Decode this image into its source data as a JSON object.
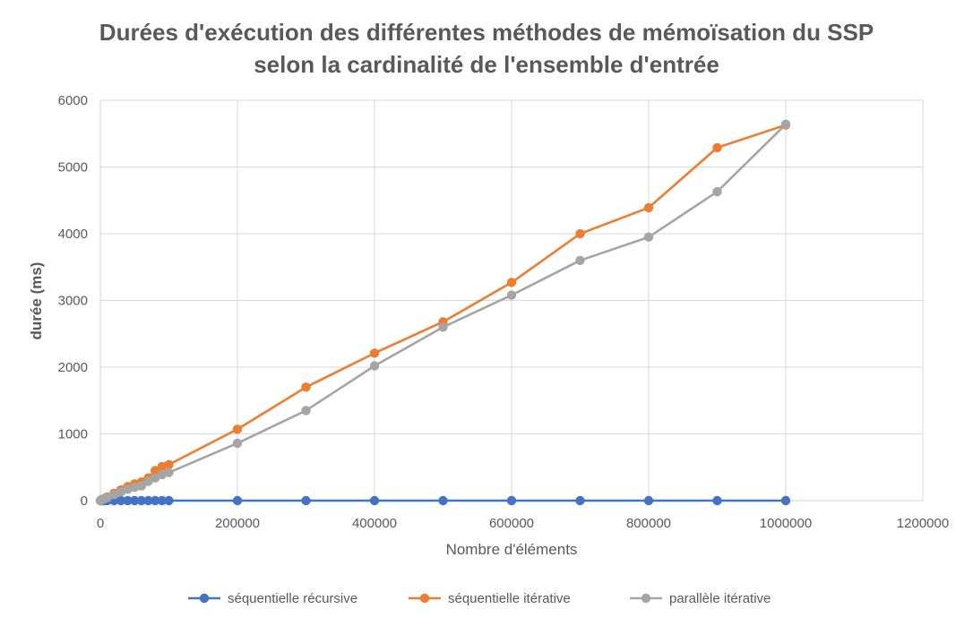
{
  "chart_data": {
    "type": "scatter",
    "title_lines": [
      "Durées d'exécution des différentes méthodes de mémoïsation du SSP",
      "selon la cardinalité de l'ensemble d'entrée"
    ],
    "xlabel": "Nombre d'éléments",
    "ylabel": "durée (ms)",
    "xlim": [
      0,
      1200000
    ],
    "ylim": [
      0,
      6000
    ],
    "x_ticks": [
      0,
      200000,
      400000,
      600000,
      800000,
      1000000,
      1200000
    ],
    "x_tick_labels": [
      "0",
      "200000",
      "400000",
      "600000",
      "800000",
      "1000000",
      "1200000"
    ],
    "y_ticks": [
      0,
      1000,
      2000,
      3000,
      4000,
      5000,
      6000
    ],
    "y_tick_labels": [
      "0",
      "1000",
      "2000",
      "3000",
      "4000",
      "5000",
      "6000"
    ],
    "grid": true,
    "legend_position": "bottom",
    "series": [
      {
        "name": "séquentielle récursive",
        "color": "#4472C4",
        "points": [
          [
            0,
            0
          ],
          [
            1000,
            0
          ],
          [
            2000,
            0
          ],
          [
            5000,
            0
          ],
          [
            10000,
            0
          ],
          [
            20000,
            0
          ],
          [
            30000,
            0
          ],
          [
            40000,
            0
          ],
          [
            50000,
            0
          ],
          [
            60000,
            0
          ],
          [
            70000,
            0
          ],
          [
            80000,
            0
          ],
          [
            90000,
            0
          ],
          [
            100000,
            0
          ],
          [
            200000,
            0
          ],
          [
            300000,
            0
          ],
          [
            400000,
            0
          ],
          [
            500000,
            0
          ],
          [
            600000,
            0
          ],
          [
            700000,
            0
          ],
          [
            800000,
            0
          ],
          [
            900000,
            0
          ],
          [
            1000000,
            0
          ]
        ]
      },
      {
        "name": "séquentielle itérative",
        "color": "#ED7D31",
        "points": [
          [
            0,
            0
          ],
          [
            1000,
            10
          ],
          [
            2000,
            15
          ],
          [
            5000,
            30
          ],
          [
            10000,
            55
          ],
          [
            20000,
            110
          ],
          [
            30000,
            160
          ],
          [
            40000,
            210
          ],
          [
            50000,
            250
          ],
          [
            60000,
            280
          ],
          [
            70000,
            340
          ],
          [
            80000,
            450
          ],
          [
            90000,
            510
          ],
          [
            100000,
            540
          ],
          [
            200000,
            1070
          ],
          [
            300000,
            1700
          ],
          [
            400000,
            2210
          ],
          [
            500000,
            2680
          ],
          [
            600000,
            3270
          ],
          [
            700000,
            4000
          ],
          [
            800000,
            4390
          ],
          [
            900000,
            5290
          ],
          [
            1000000,
            5630
          ]
        ]
      },
      {
        "name": "parallèle itérative",
        "color": "#A5A5A5",
        "points": [
          [
            0,
            0
          ],
          [
            1000,
            8
          ],
          [
            2000,
            12
          ],
          [
            5000,
            25
          ],
          [
            10000,
            45
          ],
          [
            20000,
            90
          ],
          [
            30000,
            130
          ],
          [
            40000,
            170
          ],
          [
            50000,
            200
          ],
          [
            60000,
            220
          ],
          [
            70000,
            290
          ],
          [
            80000,
            340
          ],
          [
            90000,
            390
          ],
          [
            100000,
            420
          ],
          [
            200000,
            860
          ],
          [
            300000,
            1350
          ],
          [
            400000,
            2020
          ],
          [
            500000,
            2600
          ],
          [
            600000,
            3080
          ],
          [
            700000,
            3600
          ],
          [
            800000,
            3950
          ],
          [
            900000,
            4630
          ],
          [
            1000000,
            5640
          ]
        ]
      }
    ]
  }
}
